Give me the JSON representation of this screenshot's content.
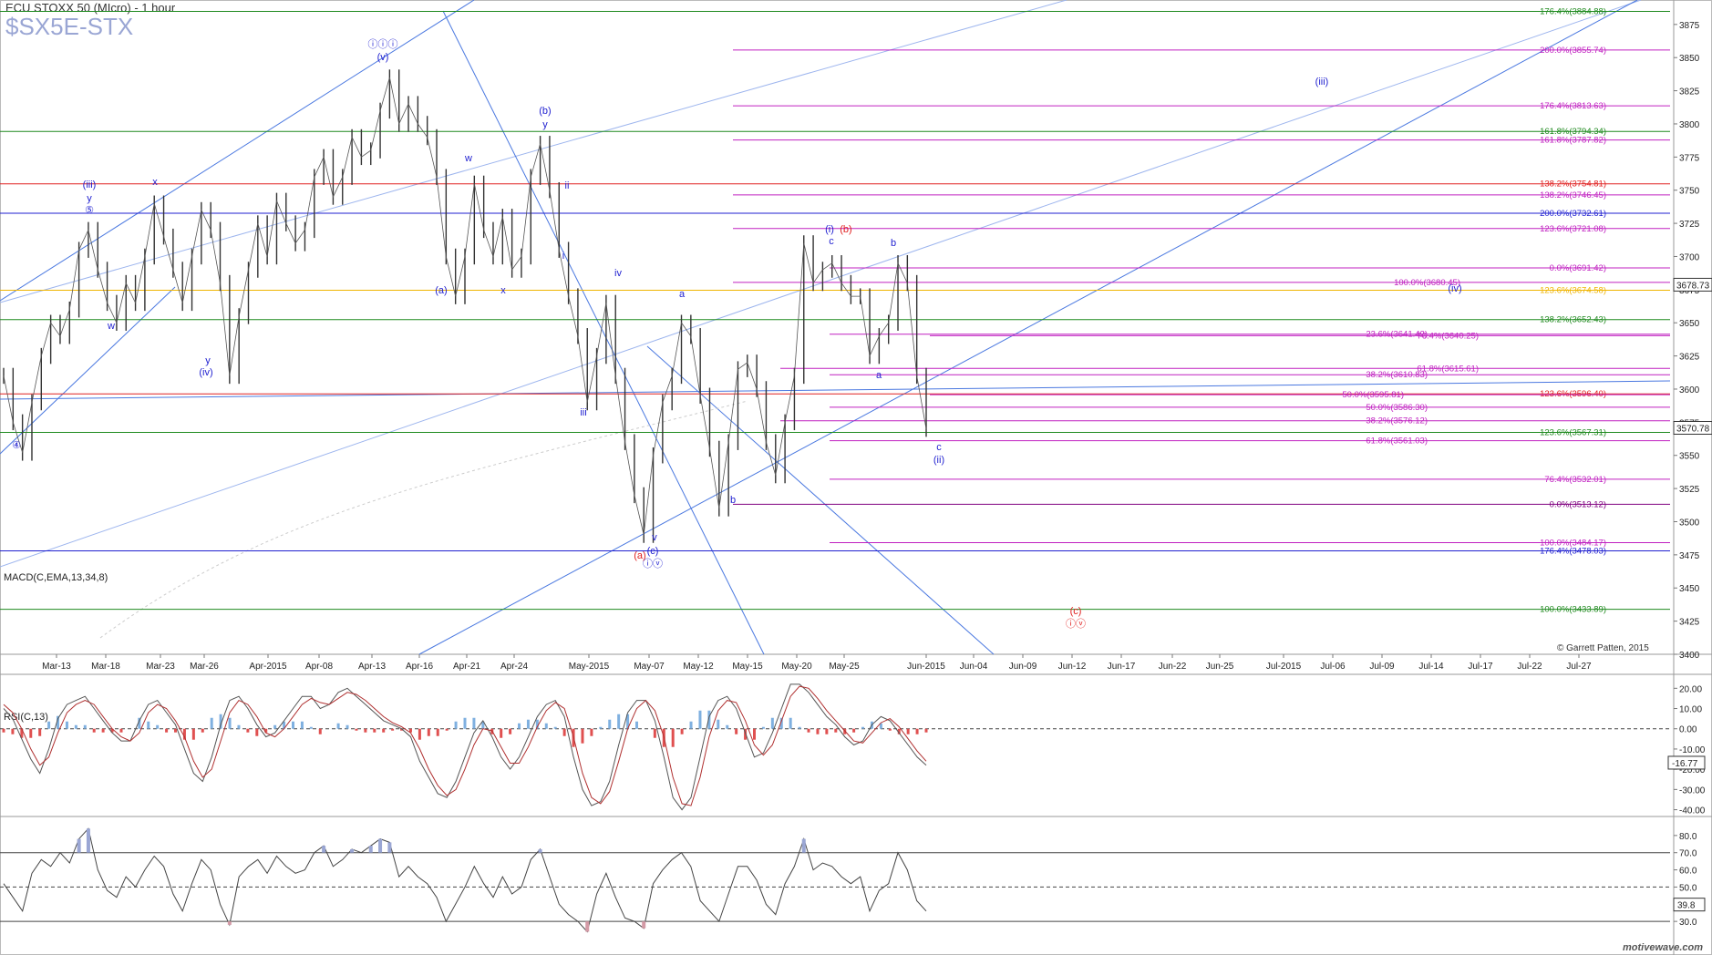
{
  "header": {
    "title": "ECU STOXX 50 (MIcro) - 1 hour",
    "ticker": "$SX5E-STX"
  },
  "credit": "© Garrett Patten, 2015",
  "brand": "motivewave.com",
  "chart_data": [
    {
      "type": "line",
      "name": "price",
      "title": "ECU STOXX 50 (MIcro) - 1 hour",
      "ylim": [
        3400,
        3890
      ],
      "y_ticks": [
        3400,
        3425,
        3450,
        3475,
        3500,
        3525,
        3550,
        3575,
        3600,
        3625,
        3650,
        3675,
        3700,
        3725,
        3750,
        3775,
        3800,
        3825,
        3850,
        3875
      ],
      "x_ticks": [
        "Mar-13",
        "Mar-18",
        "Mar-23",
        "Mar-26",
        "Apr-2015",
        "Apr-08",
        "Apr-13",
        "Apr-16",
        "Apr-21",
        "Apr-24",
        "May-2015",
        "May-07",
        "May-12",
        "May-15",
        "May-20",
        "May-25",
        "Jun-2015",
        "Jun-04",
        "Jun-09",
        "Jun-12",
        "Jun-17",
        "Jun-22",
        "Jun-25",
        "Jul-2015",
        "Jul-06",
        "Jul-09",
        "Jul-14",
        "Jul-17",
        "Jul-22",
        "Jul-27"
      ],
      "current_price": "3570.78",
      "marker_price": "3678.73",
      "series": [
        {
          "name": "price",
          "values": [
            3610,
            3575,
            3552,
            3590,
            3625,
            3650,
            3640,
            3660,
            3705,
            3720,
            3690,
            3665,
            3650,
            3680,
            3665,
            3700,
            3740,
            3715,
            3690,
            3665,
            3700,
            3735,
            3720,
            3680,
            3610,
            3655,
            3690,
            3725,
            3700,
            3742,
            3725,
            3710,
            3720,
            3760,
            3775,
            3745,
            3760,
            3790,
            3775,
            3780,
            3810,
            3835,
            3800,
            3815,
            3800,
            3790,
            3760,
            3700,
            3670,
            3700,
            3755,
            3720,
            3700,
            3730,
            3690,
            3700,
            3760,
            3785,
            3750,
            3705,
            3670,
            3640,
            3590,
            3625,
            3665,
            3610,
            3560,
            3520,
            3490,
            3550,
            3590,
            3610,
            3650,
            3640,
            3595,
            3555,
            3510,
            3560,
            3615,
            3620,
            3600,
            3560,
            3535,
            3575,
            3610,
            3710,
            3680,
            3690,
            3695,
            3680,
            3670,
            3670,
            3625,
            3640,
            3650,
            3695,
            3680,
            3610,
            3570
          ]
        }
      ],
      "levels": [
        {
          "label": "176.4%(3884.88)",
          "value": 3884.88,
          "color": "#1f8a1f"
        },
        {
          "label": "200.0%(3855.74)",
          "value": 3855.74,
          "color": "#c020c0"
        },
        {
          "label": "176.4%(3813.63)",
          "value": 3813.63,
          "color": "#c020c0"
        },
        {
          "label": "161.8%(3794.34)",
          "value": 3794.34,
          "color": "#1f8a1f"
        },
        {
          "label": "161.8%(3787.82)",
          "value": 3787.82,
          "color": "#c020c0"
        },
        {
          "label": "138.2%(3754.81)",
          "value": 3754.81,
          "color": "#e02020"
        },
        {
          "label": "138.2%(3746.45)",
          "value": 3746.45,
          "color": "#c020c0"
        },
        {
          "label": "200.0%(3732.61)",
          "value": 3732.61,
          "color": "#1f1fd0"
        },
        {
          "label": "123.6%(3721.08)",
          "value": 3721.08,
          "color": "#c020c0"
        },
        {
          "label": "0.0%(3691.42)",
          "value": 3691.42,
          "color": "#c020c0"
        },
        {
          "label": "100.0%(3680.45)",
          "value": 3680.45,
          "color": "#c020c0"
        },
        {
          "label": "123.6%(3674.58)",
          "value": 3674.58,
          "color": "#f0b400"
        },
        {
          "label": "138.2%(3652.43)",
          "value": 3652.43,
          "color": "#1f8a1f"
        },
        {
          "label": "23.6%(3641.42)",
          "value": 3641.42,
          "color": "#c020c0"
        },
        {
          "label": "76.4%(3640.25)",
          "value": 3640.25,
          "color": "#c020c0"
        },
        {
          "label": "61.8%(3615.61)",
          "value": 3615.61,
          "color": "#c020c0"
        },
        {
          "label": "38.2%(3610.83)",
          "value": 3610.83,
          "color": "#c020c0"
        },
        {
          "label": "123.6%(3596.40)",
          "value": 3596.4,
          "color": "#e02020"
        },
        {
          "label": "50.0%(3595.81)",
          "value": 3595.81,
          "color": "#c020c0"
        },
        {
          "label": "50.0%(3586.30)",
          "value": 3586.3,
          "color": "#c020c0"
        },
        {
          "label": "38.2%(3576.12)",
          "value": 3576.12,
          "color": "#c020c0"
        },
        {
          "label": "123.6%(3567.31)",
          "value": 3567.31,
          "color": "#1f8a1f"
        },
        {
          "label": "61.8%(3561.03)",
          "value": 3561.03,
          "color": "#c020c0"
        },
        {
          "label": "76.4%(3532.01)",
          "value": 3532.01,
          "color": "#c020c0"
        },
        {
          "label": "0.0%(3513.12)",
          "value": 3513.12,
          "color": "#800080"
        },
        {
          "label": "100.0%(3484.17)",
          "value": 3484.17,
          "color": "#c020c0"
        },
        {
          "label": "176.4%(3478.03)",
          "value": 3478.03,
          "color": "#1f1fd0"
        },
        {
          "label": "100.0%(3433.89)",
          "value": 3433.89,
          "color": "#1f8a1f"
        }
      ],
      "wave_labels": [
        {
          "text": "ⓘⓘⓘ",
          "color": "#1f1fd0"
        },
        {
          "text": "(v)",
          "color": "#1f1fd0"
        },
        {
          "text": "(iii)",
          "color": "#1f1fd0"
        },
        {
          "text": "y",
          "color": "#1f1fd0"
        },
        {
          "text": "⑤",
          "color": "#1f1fd0"
        },
        {
          "text": "x",
          "color": "#1f1fd0"
        },
        {
          "text": "w",
          "color": "#1f1fd0"
        },
        {
          "text": "y",
          "color": "#1f1fd0"
        },
        {
          "text": "(iv)",
          "color": "#1f1fd0"
        },
        {
          "text": "④",
          "color": "#1f1fd0"
        },
        {
          "text": "(b)",
          "color": "#1f1fd0"
        },
        {
          "text": "y",
          "color": "#1f1fd0"
        },
        {
          "text": "w",
          "color": "#1f1fd0"
        },
        {
          "text": "(a)",
          "color": "#1f1fd0"
        },
        {
          "text": "x",
          "color": "#1f1fd0"
        },
        {
          "text": "ii",
          "color": "#1f1fd0"
        },
        {
          "text": "i",
          "color": "#1f1fd0"
        },
        {
          "text": "iv",
          "color": "#1f1fd0"
        },
        {
          "text": "iii",
          "color": "#1f1fd0"
        },
        {
          "text": "a",
          "color": "#1f1fd0"
        },
        {
          "text": "v",
          "color": "#1f1fd0"
        },
        {
          "text": "(a)",
          "color": "#e02020"
        },
        {
          "text": "(c)",
          "color": "#1f1fd0"
        },
        {
          "text": "ⓘⓥ",
          "color": "#1f1fd0"
        },
        {
          "text": "b",
          "color": "#1f1fd0"
        },
        {
          "text": "(i)",
          "color": "#1f1fd0"
        },
        {
          "text": "(b)",
          "color": "#e02020"
        },
        {
          "text": "c",
          "color": "#1f1fd0"
        },
        {
          "text": "b",
          "color": "#1f1fd0"
        },
        {
          "text": "a",
          "color": "#1f1fd0"
        },
        {
          "text": "c",
          "color": "#1f1fd0"
        },
        {
          "text": "(ii)",
          "color": "#1f1fd0"
        },
        {
          "text": "(iii)",
          "color": "#1f1fd0"
        },
        {
          "text": "(iv)",
          "color": "#1f1fd0"
        },
        {
          "text": "(c)",
          "color": "#e02020"
        },
        {
          "text": "ⓘⓥ",
          "color": "#e02020"
        }
      ]
    },
    {
      "type": "line",
      "title": "MACD(C,EMA,13,34,8)",
      "ylim": [
        -42,
        26
      ],
      "y_ticks": [
        20,
        10,
        0,
        -10,
        -20,
        -30,
        -40
      ],
      "y_tick_labels": [
        "20.00",
        "10.00",
        "0.00",
        "-10.00",
        "-20.00",
        "-30.00",
        "-40.00"
      ],
      "current_value": "-16.77",
      "series": [
        {
          "name": "macd",
          "values": [
            10,
            5,
            -5,
            -15,
            -22,
            -10,
            5,
            12,
            14,
            16,
            10,
            4,
            -2,
            -6,
            -6,
            4,
            12,
            14,
            8,
            2,
            -10,
            -22,
            -26,
            -14,
            2,
            14,
            16,
            10,
            2,
            -4,
            -2,
            4,
            10,
            16,
            16,
            10,
            12,
            18,
            20,
            16,
            12,
            8,
            4,
            2,
            0,
            -4,
            -16,
            -24,
            -32,
            -34,
            -26,
            -14,
            -2,
            4,
            -4,
            -14,
            -20,
            -14,
            -4,
            6,
            12,
            14,
            6,
            -14,
            -30,
            -38,
            -36,
            -26,
            -8,
            8,
            14,
            14,
            4,
            -14,
            -34,
            -40,
            -34,
            -14,
            6,
            14,
            16,
            10,
            -2,
            -14,
            -12,
            -2,
            10,
            22,
            22,
            18,
            12,
            6,
            2,
            -4,
            -8,
            -6,
            2,
            6,
            4,
            -2,
            -8,
            -14,
            -18
          ]
        },
        {
          "name": "signal",
          "values": [
            12,
            8,
            0,
            -10,
            -18,
            -14,
            -2,
            8,
            12,
            14,
            12,
            6,
            0,
            -4,
            -6,
            -2,
            8,
            12,
            10,
            4,
            -4,
            -16,
            -24,
            -20,
            -6,
            8,
            14,
            12,
            6,
            -2,
            -4,
            0,
            6,
            12,
            15,
            13,
            12,
            15,
            18,
            17,
            14,
            10,
            6,
            3,
            1,
            -2,
            -10,
            -20,
            -28,
            -33,
            -30,
            -20,
            -8,
            0,
            -1,
            -9,
            -17,
            -17,
            -9,
            1,
            9,
            13,
            10,
            -4,
            -22,
            -34,
            -37,
            -31,
            -16,
            0,
            10,
            14,
            9,
            -4,
            -24,
            -37,
            -38,
            -24,
            -4,
            9,
            14,
            13,
            4,
            -8,
            -13,
            -8,
            4,
            16,
            21,
            20,
            15,
            9,
            4,
            -1,
            -6,
            -7,
            -2,
            3,
            5,
            1,
            -5,
            -11,
            -16
          ]
        }
      ]
    },
    {
      "type": "line",
      "title": "RSI(C,13)",
      "ylim": [
        20,
        90
      ],
      "y_ticks": [
        80,
        70,
        60,
        50,
        40,
        30
      ],
      "y_tick_labels": [
        "80.0",
        "70.0",
        "60.0",
        "50.0",
        "40.0",
        "30.0"
      ],
      "reference_lines": [
        70,
        50,
        30
      ],
      "current_value": "39.8",
      "series": [
        {
          "name": "rsi",
          "values": [
            52,
            44,
            36,
            58,
            66,
            62,
            70,
            64,
            78,
            84,
            60,
            48,
            44,
            56,
            50,
            60,
            68,
            62,
            46,
            36,
            52,
            66,
            60,
            40,
            28,
            56,
            62,
            66,
            58,
            68,
            62,
            58,
            60,
            70,
            74,
            62,
            66,
            72,
            70,
            74,
            78,
            76,
            56,
            62,
            56,
            52,
            44,
            30,
            40,
            50,
            62,
            52,
            44,
            56,
            46,
            50,
            66,
            72,
            56,
            40,
            34,
            30,
            24,
            46,
            58,
            44,
            32,
            30,
            26,
            52,
            60,
            66,
            70,
            62,
            42,
            36,
            30,
            46,
            62,
            62,
            54,
            40,
            34,
            52,
            62,
            78,
            60,
            64,
            62,
            56,
            52,
            56,
            36,
            48,
            52,
            70,
            60,
            42,
            36
          ]
        }
      ]
    }
  ]
}
